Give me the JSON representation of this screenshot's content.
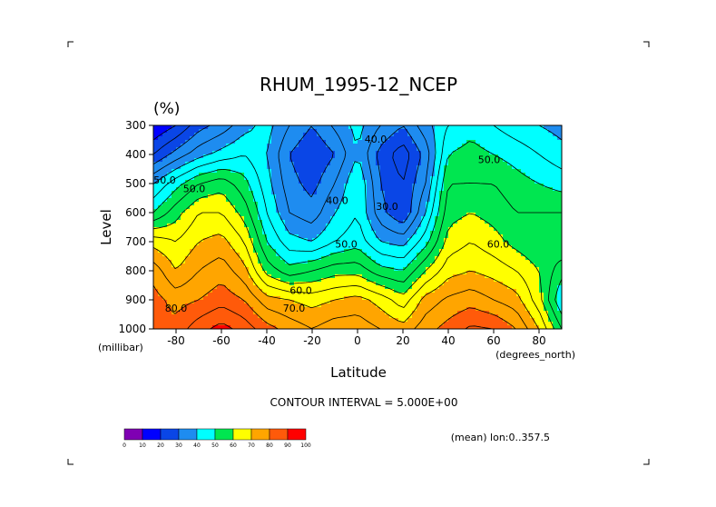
{
  "chart_data": {
    "type": "heatmap",
    "title": "RHUM_1995-12_NCEP",
    "units": "(%)",
    "xlabel": "Latitude",
    "ylabel": "Level",
    "x_unit_label": "(degrees_north)",
    "y_unit_label": "(millibar)",
    "xlim": [
      -90,
      90
    ],
    "ylim": [
      1000,
      300
    ],
    "x_ticks": [
      -80,
      -60,
      -40,
      -20,
      0,
      20,
      40,
      60,
      80
    ],
    "y_ticks": [
      300,
      400,
      500,
      600,
      700,
      800,
      900,
      1000
    ],
    "contour_interval_text": "CONTOUR INTERVAL = 5.000E+00",
    "footer_text": "(mean) lon:0..357.5",
    "colorbar": {
      "colors": [
        "#7f00b3",
        "#0000ff",
        "#0a46e6",
        "#1e8cf0",
        "#00ffff",
        "#00e650",
        "#ffff00",
        "#ffa500",
        "#ff5a0a",
        "#ff0000"
      ],
      "ticks": [
        "0",
        "10",
        "20",
        "30",
        "40",
        "50",
        "60",
        "70",
        "80",
        "90",
        "100"
      ]
    },
    "levels": [
      300,
      400,
      500,
      600,
      700,
      800,
      900,
      1000
    ],
    "latitudes": [
      -90,
      -80,
      -70,
      -60,
      -50,
      -40,
      -30,
      -20,
      -10,
      0,
      10,
      20,
      30,
      40,
      50,
      60,
      70,
      80,
      90
    ],
    "values": [
      [
        15,
        20,
        28,
        32,
        38,
        42,
        35,
        30,
        36,
        42,
        35,
        30,
        38,
        45,
        48,
        45,
        42,
        40,
        38
      ],
      [
        25,
        32,
        38,
        42,
        45,
        40,
        30,
        25,
        30,
        40,
        28,
        22,
        32,
        50,
        52,
        50,
        48,
        45,
        42
      ],
      [
        40,
        48,
        55,
        58,
        52,
        42,
        32,
        28,
        35,
        45,
        30,
        25,
        35,
        55,
        55,
        55,
        52,
        50,
        48
      ],
      [
        50,
        58,
        65,
        65,
        58,
        45,
        35,
        32,
        40,
        45,
        32,
        25,
        40,
        58,
        60,
        58,
        55,
        55,
        55
      ],
      [
        68,
        65,
        70,
        72,
        65,
        50,
        42,
        40,
        45,
        48,
        40,
        38,
        48,
        62,
        65,
        62,
        58,
        55,
        60
      ],
      [
        78,
        70,
        75,
        78,
        72,
        58,
        52,
        55,
        58,
        58,
        52,
        50,
        60,
        68,
        70,
        68,
        65,
        60,
        52
      ],
      [
        82,
        78,
        80,
        83,
        80,
        72,
        70,
        68,
        70,
        72,
        68,
        62,
        72,
        76,
        78,
        75,
        72,
        62,
        45
      ],
      [
        82,
        82,
        88,
        92,
        88,
        82,
        78,
        75,
        78,
        78,
        75,
        72,
        78,
        82,
        86,
        85,
        80,
        70,
        55
      ]
    ],
    "contour_labels": [
      {
        "text": "40.0",
        "lat": 8,
        "lev": 360
      },
      {
        "text": "50.0",
        "lat": 58,
        "lev": 430
      },
      {
        "text": "40.0",
        "lat": -9,
        "lev": 570
      },
      {
        "text": "30.0",
        "lat": 13,
        "lev": 590
      },
      {
        "text": "50.0",
        "lat": -85,
        "lev": 500
      },
      {
        "text": "50.0",
        "lat": -72,
        "lev": 530
      },
      {
        "text": "50.0",
        "lat": -5,
        "lev": 720
      },
      {
        "text": "60.0",
        "lat": 62,
        "lev": 720
      },
      {
        "text": "60.0",
        "lat": -25,
        "lev": 880
      },
      {
        "text": "70.0",
        "lat": -28,
        "lev": 940
      },
      {
        "text": "80.0",
        "lat": -80,
        "lev": 940
      }
    ]
  }
}
